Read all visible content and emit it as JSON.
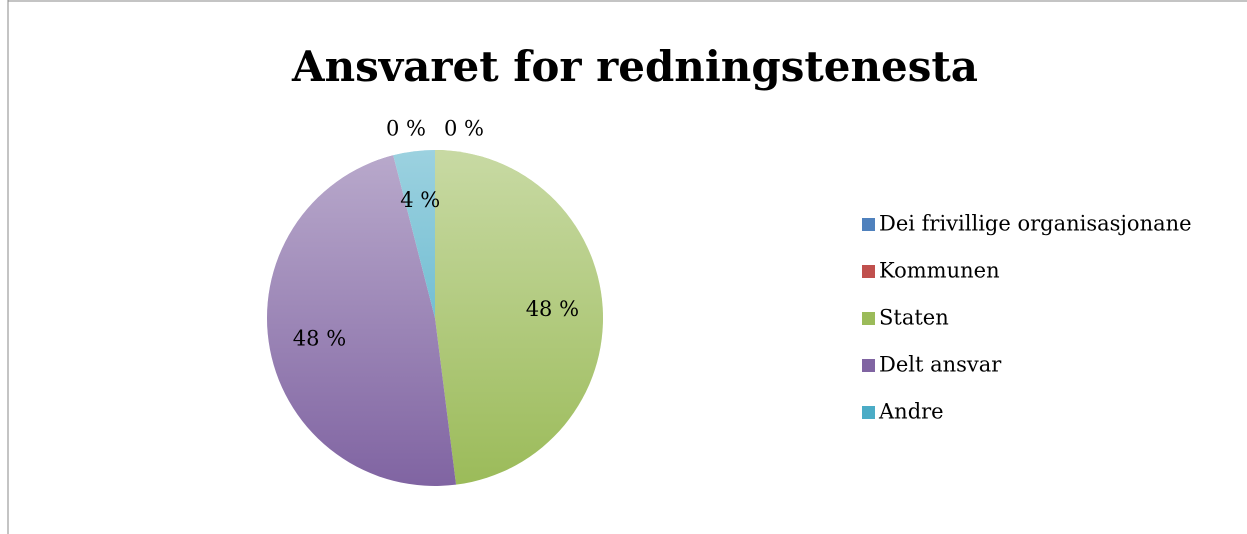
{
  "chart_data": {
    "type": "pie",
    "title": "Ansvaret for redningstenesta",
    "categories": [
      "Dei frivillige organisasjonane",
      "Kommunen",
      "Staten",
      "Delt ansvar",
      "Andre"
    ],
    "values": [
      0,
      0,
      48,
      48,
      4
    ],
    "value_labels": [
      "0 %",
      "0 %",
      "48 %",
      "48 %",
      "4 %"
    ],
    "colors": [
      "#4f81bd",
      "#c0504d",
      "#9bbb59",
      "#8064a2",
      "#4bacc6"
    ],
    "legend": "right"
  }
}
